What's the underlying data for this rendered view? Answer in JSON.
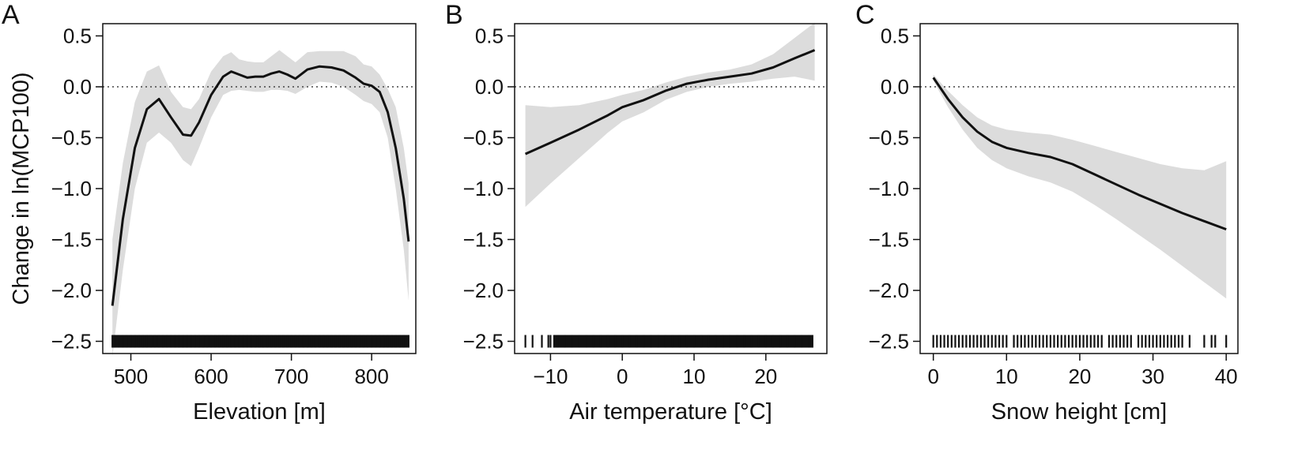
{
  "figure": {
    "ylabel": "Change in ln(MCP100)"
  },
  "chart_data": [
    {
      "type": "line",
      "panel_label": "A",
      "xlabel": "Elevation [m]",
      "ylabel": "Change in ln(MCP100)",
      "xlim": [
        465,
        855
      ],
      "ylim": [
        -2.62,
        0.62
      ],
      "xticks": [
        500,
        600,
        700,
        800
      ],
      "xtick_labels": [
        "500",
        "600",
        "700",
        "800"
      ],
      "yticks": [
        0.5,
        0.0,
        -0.5,
        -1.0,
        -1.5,
        -2.0,
        -2.5
      ],
      "ytick_labels": [
        "0.5",
        "0.0",
        "−0.5",
        "−1.0",
        "−1.5",
        "−2.0",
        "−2.5"
      ],
      "reference_line_y": 0,
      "series": [
        {
          "x": [
            477,
            490,
            505,
            520,
            535,
            550,
            565,
            575,
            585,
            600,
            615,
            625,
            635,
            645,
            655,
            665,
            675,
            685,
            695,
            705,
            720,
            735,
            750,
            765,
            780,
            790,
            800,
            810,
            820,
            830,
            840,
            846
          ],
          "y": [
            -2.15,
            -1.3,
            -0.6,
            -0.22,
            -0.12,
            -0.3,
            -0.47,
            -0.48,
            -0.35,
            -0.08,
            0.1,
            0.15,
            0.12,
            0.09,
            0.1,
            0.1,
            0.13,
            0.15,
            0.12,
            0.08,
            0.17,
            0.2,
            0.19,
            0.16,
            0.09,
            0.03,
            0.01,
            -0.05,
            -0.25,
            -0.6,
            -1.1,
            -1.52
          ]
        }
      ],
      "band": {
        "x": [
          477,
          490,
          505,
          520,
          535,
          550,
          565,
          575,
          585,
          600,
          615,
          625,
          635,
          645,
          655,
          665,
          675,
          685,
          695,
          705,
          720,
          735,
          750,
          765,
          780,
          790,
          800,
          810,
          820,
          830,
          840,
          846
        ],
        "upper": [
          -1.5,
          -0.75,
          -0.15,
          0.15,
          0.21,
          -0.05,
          -0.2,
          -0.22,
          -0.12,
          0.15,
          0.3,
          0.34,
          0.27,
          0.25,
          0.24,
          0.24,
          0.3,
          0.36,
          0.3,
          0.24,
          0.34,
          0.35,
          0.35,
          0.35,
          0.3,
          0.22,
          0.2,
          0.12,
          -0.02,
          -0.2,
          -0.6,
          -0.95
        ],
        "lower": [
          -2.65,
          -1.8,
          -1.0,
          -0.55,
          -0.45,
          -0.55,
          -0.72,
          -0.78,
          -0.6,
          -0.3,
          -0.08,
          -0.04,
          -0.03,
          -0.04,
          -0.05,
          -0.05,
          -0.03,
          -0.03,
          -0.04,
          -0.07,
          0.0,
          0.05,
          0.04,
          0.0,
          -0.08,
          -0.14,
          -0.17,
          -0.25,
          -0.5,
          -1.0,
          -1.6,
          -2.1
        ]
      },
      "rug": {
        "continuous_from": 477,
        "continuous_to": 846,
        "values": [
          477,
          480,
          485,
          490,
          495,
          500,
          505,
          510,
          515,
          520,
          525,
          530,
          535,
          540,
          545,
          550,
          555,
          560,
          565,
          570,
          575,
          580,
          585,
          590,
          595,
          600,
          605,
          610,
          615,
          620,
          625,
          630,
          635,
          640,
          645,
          650,
          655,
          660,
          665,
          670,
          675,
          680,
          685,
          690,
          695,
          700,
          705,
          710,
          715,
          720,
          725,
          730,
          735,
          740,
          745,
          750,
          755,
          760,
          765,
          770,
          775,
          780,
          785,
          790,
          795,
          800,
          805,
          810,
          815,
          820,
          825,
          830,
          835,
          840,
          846
        ]
      }
    },
    {
      "type": "line",
      "panel_label": "B",
      "xlabel": "Air temperature [°C]",
      "xlim": [
        -15,
        28.5
      ],
      "ylim": [
        -2.62,
        0.62
      ],
      "xticks": [
        -10,
        0,
        10,
        20
      ],
      "xtick_labels": [
        "−10",
        "0",
        "10",
        "20"
      ],
      "yticks": [
        0.5,
        0.0,
        -0.5,
        -1.0,
        -1.5,
        -2.0,
        -2.5
      ],
      "ytick_labels": [
        "0.5",
        "0.0",
        "−0.5",
        "−1.0",
        "−1.5",
        "−2.0",
        "−2.5"
      ],
      "reference_line_y": 0,
      "series": [
        {
          "x": [
            -13.5,
            -10,
            -6,
            -2,
            0,
            3,
            6,
            9,
            12,
            15,
            18,
            21,
            24,
            26.8
          ],
          "y": [
            -0.66,
            -0.55,
            -0.42,
            -0.28,
            -0.2,
            -0.13,
            -0.04,
            0.03,
            0.07,
            0.1,
            0.13,
            0.19,
            0.28,
            0.36
          ]
        }
      ],
      "band": {
        "x": [
          -13.5,
          -10,
          -6,
          -2,
          0,
          3,
          6,
          9,
          12,
          15,
          18,
          21,
          24,
          26.8
        ],
        "upper": [
          -0.18,
          -0.2,
          -0.18,
          -0.12,
          -0.08,
          -0.03,
          0.04,
          0.1,
          0.14,
          0.17,
          0.22,
          0.32,
          0.48,
          0.63
        ],
        "lower": [
          -1.18,
          -0.95,
          -0.7,
          -0.45,
          -0.34,
          -0.25,
          -0.13,
          -0.05,
          0.0,
          0.03,
          0.05,
          0.08,
          0.1,
          0.06
        ]
      },
      "rug": {
        "continuous_from": -9.5,
        "continuous_to": 26.5,
        "values": [
          -13.5,
          -12.5,
          -11.2,
          -10.3,
          -10.0,
          -9.5,
          -9,
          -8,
          -7,
          -6,
          -5,
          -4,
          -3,
          -2,
          -1,
          0,
          1,
          2,
          3,
          4,
          5,
          6,
          7,
          8,
          9,
          10,
          11,
          12,
          13,
          14,
          15,
          16,
          17,
          18,
          19,
          20,
          21,
          22,
          23,
          24,
          25,
          26,
          26.5
        ]
      }
    },
    {
      "type": "line",
      "panel_label": "C",
      "xlabel": "Snow height [cm]",
      "xlim": [
        -1.8,
        41.6
      ],
      "ylim": [
        -2.62,
        0.62
      ],
      "xticks": [
        0,
        10,
        20,
        30,
        40
      ],
      "xtick_labels": [
        "0",
        "10",
        "20",
        "30",
        "40"
      ],
      "yticks": [
        0.5,
        0.0,
        -0.5,
        -1.0,
        -1.5,
        -2.0,
        -2.5
      ],
      "ytick_labels": [
        "0.5",
        "0.0",
        "−0.5",
        "−1.0",
        "−1.5",
        "−2.0",
        "−2.5"
      ],
      "reference_line_y": 0,
      "series": [
        {
          "x": [
            0,
            2,
            4,
            6,
            8,
            10,
            13,
            16,
            19,
            22,
            25,
            28,
            31,
            34,
            37,
            40
          ],
          "y": [
            0.09,
            -0.12,
            -0.3,
            -0.44,
            -0.54,
            -0.6,
            -0.65,
            -0.69,
            -0.76,
            -0.86,
            -0.96,
            -1.06,
            -1.15,
            -1.24,
            -1.32,
            -1.4
          ]
        }
      ],
      "band": {
        "x": [
          0,
          2,
          4,
          6,
          8,
          10,
          13,
          16,
          19,
          22,
          25,
          28,
          31,
          34,
          37,
          40
        ],
        "upper": [
          0.12,
          -0.04,
          -0.18,
          -0.3,
          -0.38,
          -0.42,
          -0.45,
          -0.47,
          -0.52,
          -0.58,
          -0.64,
          -0.7,
          -0.76,
          -0.8,
          -0.82,
          -0.73
        ],
        "lower": [
          0.06,
          -0.2,
          -0.42,
          -0.6,
          -0.72,
          -0.8,
          -0.88,
          -0.94,
          -1.03,
          -1.16,
          -1.3,
          -1.45,
          -1.6,
          -1.76,
          -1.92,
          -2.08
        ]
      },
      "rug": {
        "values": [
          0,
          0.5,
          1,
          1.5,
          2,
          2.5,
          3,
          3.5,
          4,
          4.5,
          5,
          5.5,
          6,
          6.5,
          7,
          7.5,
          8,
          8.5,
          9,
          9.5,
          10,
          11,
          11.5,
          12,
          12.5,
          13,
          13.5,
          14,
          14.5,
          15,
          15.5,
          16,
          16.5,
          17,
          17.5,
          18,
          18.5,
          19,
          19.5,
          20,
          20.5,
          21,
          21.5,
          22,
          22.5,
          23,
          24,
          24.5,
          25,
          25.5,
          26,
          26.5,
          27,
          28,
          28.5,
          29,
          29.5,
          30,
          30.5,
          31,
          31.5,
          32,
          32.5,
          33,
          33.5,
          34,
          35,
          37,
          38,
          38.5,
          40
        ]
      }
    }
  ]
}
